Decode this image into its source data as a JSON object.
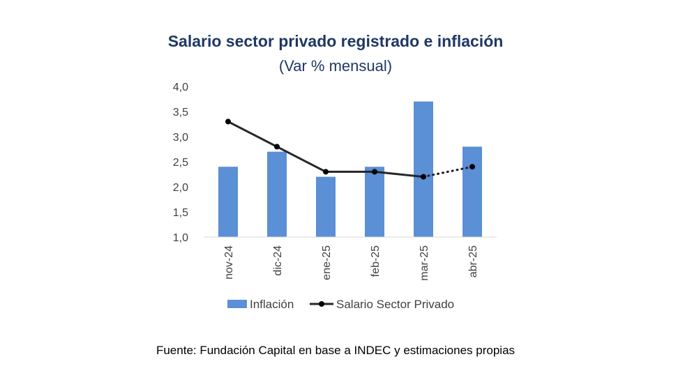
{
  "chart_data": {
    "type": "bar",
    "title": "Salario sector privado registrado e inflación",
    "subtitle": "(Var % mensual)",
    "categories": [
      "nov-24",
      "dic-24",
      "ene-25",
      "feb-25",
      "mar-25",
      "abr-25"
    ],
    "ylim": [
      1.0,
      4.0
    ],
    "yticks": [
      "1,0",
      "1,5",
      "2,0",
      "2,5",
      "3,0",
      "3,5",
      "4,0"
    ],
    "grid": false,
    "legend_position": "bottom",
    "series": [
      {
        "name": "Inflación",
        "type": "bar",
        "color": "#5b8fd6",
        "values": [
          2.4,
          2.7,
          2.2,
          2.4,
          3.7,
          2.8
        ]
      },
      {
        "name": "Salario Sector Privado",
        "type": "line",
        "color": "#262626",
        "values": [
          3.3,
          2.8,
          2.3,
          2.3,
          2.2,
          2.4
        ],
        "dotted_segments_from_index": 4
      }
    ]
  },
  "source": "Fuente: Fundación Capital en base a INDEC y estimaciones propias"
}
